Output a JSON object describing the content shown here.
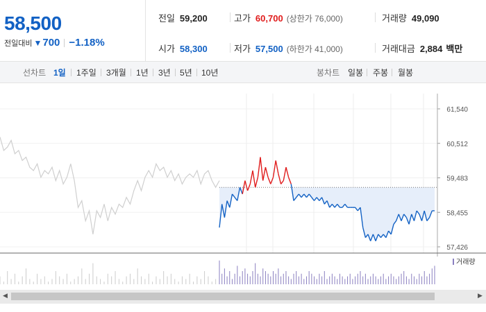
{
  "summary": {
    "price": "58,500",
    "change_label": "전일대비",
    "change_arrow": "▼",
    "change_value": "700",
    "change_pct": "−1.18%",
    "stats": [
      {
        "key": "전일",
        "value": "59,200",
        "sub": ""
      },
      {
        "key": "고가",
        "value": "60,700",
        "sub": "(상한가 76,000)"
      },
      {
        "key": "거래량",
        "value": "49,090",
        "sub": ""
      },
      {
        "key": "시가",
        "value": "58,300",
        "sub": ""
      },
      {
        "key": "저가",
        "value": "57,500",
        "sub": "(하한가 41,000)"
      },
      {
        "key": "거래대금",
        "value": "2,884",
        "sub": "백만"
      }
    ]
  },
  "tabs": {
    "line_title": "선차트",
    "periods": [
      "1일",
      "1주일",
      "3개월",
      "1년",
      "3년",
      "5년",
      "10년"
    ],
    "active_period": "1일",
    "candle_title": "봉차트",
    "candles": [
      "일봉",
      "주봉",
      "월봉"
    ]
  },
  "colors": {
    "up": "#e01c1c",
    "down": "#1261c4",
    "prev_day": "#cfcfcf",
    "fill": "#e6eefa",
    "volume": "#8a7fc0"
  },
  "chart_data": {
    "type": "line",
    "y_ticks": [
      "61,540",
      "60,512",
      "59,483",
      "58,455",
      "57,426"
    ],
    "ylim": [
      57426,
      61540
    ],
    "prev_close": 59200,
    "volume_label": "거래량",
    "prev_day_series": [
      60700,
      60300,
      60400,
      60600,
      60200,
      60300,
      60000,
      60100,
      59800,
      59700,
      59900,
      59500,
      59700,
      59600,
      59800,
      59400,
      59700,
      59300,
      59500,
      59900,
      59400,
      58600,
      58800,
      58200,
      58500,
      57800,
      58500,
      58300,
      58700,
      58200,
      58600,
      58400,
      58700,
      58600,
      58900,
      58700,
      59100,
      59400,
      59100,
      59500,
      59700,
      59500,
      59900,
      59700,
      59800,
      59500,
      59700,
      59400,
      59600,
      59300,
      59500,
      59600,
      59500,
      59700,
      59300,
      59600,
      59700,
      59400,
      59200,
      59400
    ],
    "today_series": [
      58000,
      58700,
      58300,
      58800,
      58600,
      59000,
      58900,
      58800,
      59200,
      59000,
      59400,
      59100,
      59300,
      59700,
      59200,
      59500,
      60100,
      59400,
      59800,
      59500,
      59300,
      59500,
      60000,
      59600,
      59300,
      59400,
      59800,
      59500,
      59300,
      58800,
      58900,
      59000,
      58900,
      59000,
      58900,
      59000,
      58900,
      58800,
      58900,
      58800,
      58900,
      58700,
      58800,
      58600,
      58700,
      58600,
      58700,
      58600,
      58600,
      58700,
      58600,
      58600,
      58600,
      58600,
      58500,
      58600,
      58000,
      57700,
      57800,
      57600,
      57800,
      57600,
      57800,
      57700,
      57800,
      57700,
      57900,
      57800,
      58100,
      58200,
      58400,
      58200,
      58400,
      58300,
      58100,
      58400,
      58200,
      58500,
      58400,
      58200,
      58500,
      58200,
      58300,
      58500,
      58500
    ],
    "prev_day_volume": [
      3,
      1,
      5,
      2,
      4,
      1,
      3,
      6,
      2,
      1,
      4,
      2,
      3,
      1,
      2,
      5,
      3,
      2,
      4,
      1,
      2,
      3,
      6,
      2,
      4,
      8,
      3,
      2,
      1,
      4,
      3,
      5,
      2,
      1,
      3,
      4,
      2,
      6,
      3,
      2,
      4,
      1,
      3,
      2,
      5,
      3,
      4,
      2,
      1,
      3,
      2,
      4,
      1,
      3,
      2,
      5,
      3,
      1,
      2,
      4
    ],
    "today_volume": [
      9,
      4,
      6,
      3,
      5,
      2,
      4,
      7,
      3,
      5,
      6,
      4,
      3,
      5,
      8,
      4,
      3,
      6,
      5,
      4,
      3,
      5,
      4,
      6,
      3,
      4,
      5,
      3,
      2,
      4,
      5,
      3,
      4,
      2,
      3,
      5,
      4,
      3,
      2,
      4,
      3,
      5,
      2,
      3,
      4,
      3,
      2,
      4,
      3,
      2,
      3,
      4,
      2,
      3,
      4,
      5,
      3,
      4,
      2,
      3,
      4,
      3,
      2,
      3,
      4,
      2,
      3,
      4,
      3,
      2,
      3,
      4,
      5,
      3,
      2,
      4,
      3,
      2,
      4,
      3,
      5,
      3,
      4,
      6,
      7
    ]
  }
}
